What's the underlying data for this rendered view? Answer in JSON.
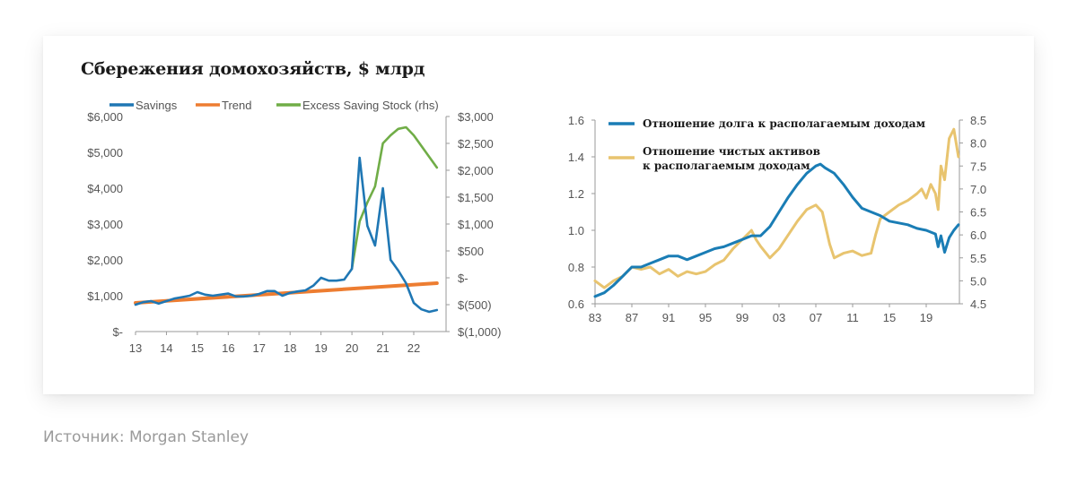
{
  "title": "Сбережения домохозяйств, $ млрд",
  "source": "Источник: Morgan Stanley",
  "chart_data": [
    {
      "type": "line",
      "title": "Сбережения домохозяйств, $ млрд",
      "xlabel": "",
      "ylabel": "",
      "x_ticks": [
        "13",
        "14",
        "15",
        "16",
        "17",
        "18",
        "19",
        "20",
        "21",
        "22"
      ],
      "xlim": [
        2013,
        2023
      ],
      "y_ticks_left": [
        "$6,000",
        "$5,000",
        "$4,000",
        "$3,000",
        "$2,000",
        "$1,000",
        "$-"
      ],
      "ylim_left": [
        0,
        6000
      ],
      "y_ticks_right": [
        "$3,000",
        "$2,500",
        "$2,000",
        "$1,500",
        "$1,000",
        "$500",
        "$-",
        "$(500)",
        "$(1,000)"
      ],
      "ylim_right": [
        -1000,
        3000
      ],
      "legend_position": "top",
      "grid": false,
      "series": [
        {
          "name": "Savings",
          "axis": "left",
          "color": "#1f77b4",
          "x": [
            2013.0,
            2013.25,
            2013.5,
            2013.75,
            2014.0,
            2014.25,
            2014.5,
            2014.75,
            2015.0,
            2015.25,
            2015.5,
            2015.75,
            2016.0,
            2016.25,
            2016.5,
            2016.75,
            2017.0,
            2017.25,
            2017.5,
            2017.75,
            2018.0,
            2018.25,
            2018.5,
            2018.75,
            2019.0,
            2019.25,
            2019.5,
            2019.75,
            2020.0,
            2020.25,
            2020.5,
            2020.75,
            2021.0,
            2021.25,
            2021.5,
            2021.75,
            2022.0,
            2022.25,
            2022.5,
            2022.75
          ],
          "values": [
            750,
            820,
            850,
            780,
            850,
            920,
            960,
            1000,
            1100,
            1030,
            1000,
            1030,
            1060,
            980,
            980,
            1000,
            1050,
            1130,
            1130,
            1000,
            1080,
            1120,
            1150,
            1280,
            1500,
            1420,
            1420,
            1450,
            1750,
            4850,
            2950,
            2400,
            4000,
            2000,
            1700,
            1350,
            800,
            620,
            550,
            600
          ]
        },
        {
          "name": "Trend",
          "axis": "left",
          "color": "#ed7d31",
          "x": [
            2013.0,
            2022.75
          ],
          "values": [
            800,
            1350
          ]
        },
        {
          "name": "Excess Saving Stock (rhs)",
          "axis": "right",
          "color": "#70ad47",
          "x": [
            2020.0,
            2020.25,
            2020.5,
            2020.75,
            2021.0,
            2021.25,
            2021.5,
            2021.75,
            2022.0,
            2022.25,
            2022.5,
            2022.75
          ],
          "values": [
            170,
            1050,
            1400,
            1700,
            2500,
            2650,
            2770,
            2800,
            2650,
            2450,
            2250,
            2050
          ]
        }
      ]
    },
    {
      "type": "line",
      "title": "",
      "xlabel": "",
      "ylabel": "",
      "x_ticks": [
        "83",
        "87",
        "91",
        "95",
        "99",
        "03",
        "07",
        "11",
        "15",
        "19"
      ],
      "xlim": [
        1983,
        2022.7
      ],
      "y_ticks_left": [
        "1.6",
        "1.4",
        "1.2",
        "1.0",
        "0.8",
        "0.6"
      ],
      "ylim_left": [
        0.6,
        1.6
      ],
      "y_ticks_right": [
        "8.5",
        "8.0",
        "7.5",
        "7.0",
        "6.5",
        "6.0",
        "5.5",
        "5.0",
        "4.5"
      ],
      "ylim_right": [
        4.5,
        8.5
      ],
      "legend_position": "top-left",
      "grid": false,
      "series": [
        {
          "name": "Отношение долга к располагаемым доходам",
          "axis": "left",
          "color": "#1a7db5",
          "x": [
            1983,
            1984,
            1985,
            1986,
            1987,
            1988,
            1989,
            1990,
            1991,
            1992,
            1993,
            1994,
            1995,
            1996,
            1997,
            1998,
            1999,
            2000,
            2001,
            2002,
            2003,
            2004,
            2005,
            2006,
            2007,
            2007.5,
            2008,
            2009,
            2010,
            2011,
            2012,
            2013,
            2014,
            2015,
            2016,
            2017,
            2018,
            2019,
            2020,
            2020.3,
            2020.6,
            2021,
            2021.5,
            2022,
            2022.5
          ],
          "values": [
            0.64,
            0.66,
            0.7,
            0.75,
            0.8,
            0.8,
            0.82,
            0.84,
            0.86,
            0.86,
            0.84,
            0.86,
            0.88,
            0.9,
            0.91,
            0.93,
            0.95,
            0.97,
            0.97,
            1.02,
            1.1,
            1.18,
            1.25,
            1.31,
            1.35,
            1.36,
            1.34,
            1.31,
            1.25,
            1.18,
            1.12,
            1.1,
            1.08,
            1.05,
            1.04,
            1.03,
            1.01,
            1.0,
            0.98,
            0.91,
            0.97,
            0.88,
            0.96,
            1.0,
            1.03
          ]
        },
        {
          "name": "Отношение чистых активов к располагаемым доходам",
          "axis": "right",
          "color": "#e8c46f",
          "x": [
            1983,
            1984,
            1985,
            1986,
            1987,
            1988,
            1989,
            1990,
            1991,
            1992,
            1993,
            1994,
            1995,
            1996,
            1997,
            1998,
            1999,
            2000,
            2000.5,
            2001,
            2002,
            2003,
            2004,
            2005,
            2006,
            2007,
            2007.7,
            2008.5,
            2009,
            2010,
            2011,
            2012,
            2013,
            2013.5,
            2014,
            2015,
            2016,
            2017,
            2018,
            2018.5,
            2019,
            2019.5,
            2020,
            2020.3,
            2020.6,
            2021,
            2021.5,
            2022,
            2022.5
          ],
          "values": [
            5.0,
            4.85,
            5.0,
            5.1,
            5.3,
            5.25,
            5.3,
            5.15,
            5.25,
            5.1,
            5.2,
            5.15,
            5.2,
            5.35,
            5.45,
            5.7,
            5.9,
            6.1,
            5.9,
            5.75,
            5.5,
            5.7,
            6.0,
            6.3,
            6.55,
            6.65,
            6.5,
            5.8,
            5.5,
            5.6,
            5.65,
            5.55,
            5.6,
            6.0,
            6.35,
            6.5,
            6.65,
            6.75,
            6.9,
            7.0,
            6.8,
            7.1,
            6.9,
            6.55,
            7.5,
            7.2,
            8.1,
            8.3,
            7.7
          ]
        }
      ]
    }
  ]
}
